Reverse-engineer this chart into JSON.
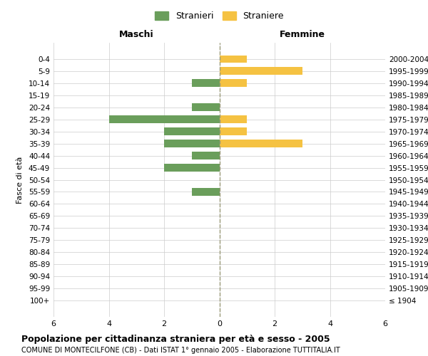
{
  "age_groups": [
    "100+",
    "95-99",
    "90-94",
    "85-89",
    "80-84",
    "75-79",
    "70-74",
    "65-69",
    "60-64",
    "55-59",
    "50-54",
    "45-49",
    "40-44",
    "35-39",
    "30-34",
    "25-29",
    "20-24",
    "15-19",
    "10-14",
    "5-9",
    "0-4"
  ],
  "birth_years": [
    "≤ 1904",
    "1905-1909",
    "1910-1914",
    "1915-1919",
    "1920-1924",
    "1925-1929",
    "1930-1934",
    "1935-1939",
    "1940-1944",
    "1945-1949",
    "1950-1954",
    "1955-1959",
    "1960-1964",
    "1965-1969",
    "1970-1974",
    "1975-1979",
    "1980-1984",
    "1985-1989",
    "1990-1994",
    "1995-1999",
    "2000-2004"
  ],
  "maschi_values": [
    0,
    0,
    0,
    0,
    0,
    0,
    0,
    0,
    0,
    1,
    0,
    2,
    1,
    2,
    2,
    4,
    1,
    0,
    1,
    0,
    0
  ],
  "femmine_values": [
    0,
    0,
    0,
    0,
    0,
    0,
    0,
    0,
    0,
    0,
    0,
    0,
    0,
    3,
    1,
    1,
    0,
    0,
    1,
    3,
    1
  ],
  "maschi_color": "#6a9e5b",
  "femmine_color": "#f5c242",
  "background_color": "#ffffff",
  "grid_color": "#cccccc",
  "title": "Popolazione per cittadinanza straniera per età e sesso - 2005",
  "subtitle": "COMUNE DI MONTECILFONE (CB) - Dati ISTAT 1° gennaio 2005 - Elaborazione TUTTITALIA.IT",
  "xlabel_left": "Maschi",
  "xlabel_right": "Femmine",
  "ylabel_left": "Fasce di età",
  "legend_maschi": "Stranieri",
  "legend_femmine": "Straniere",
  "xlim": 6,
  "center_line_color": "#999977"
}
